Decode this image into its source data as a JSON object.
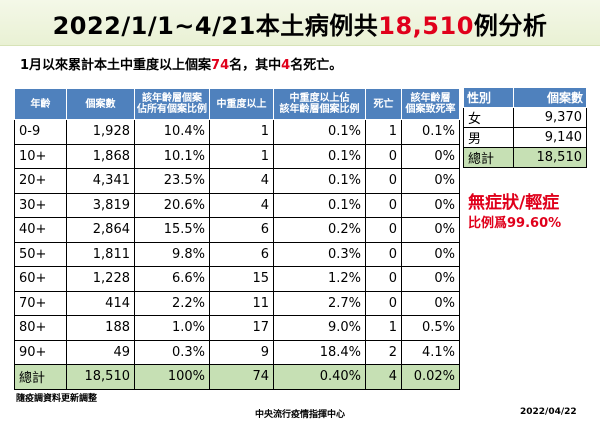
{
  "title": {
    "part1": "2022/1/1~4/21本土病例共",
    "number": "18,510",
    "part2": "例分析"
  },
  "subtitle": {
    "part1": "1月以來累計本土中重度以上個案",
    "count": "74",
    "part2": "名，其中",
    "deaths": "4",
    "part3": "名死亡。"
  },
  "main_table": {
    "headers": [
      "年齡",
      "個案數",
      "該年齡層個案\n佔所有個案比例",
      "中重度以上",
      "中重度以上佔\n該年齡層個案比例",
      "死亡",
      "該年齡層\n個案致死率"
    ],
    "rows": [
      [
        "0-9",
        "1,928",
        "10.4%",
        "1",
        "0.1%",
        "1",
        "0.1%"
      ],
      [
        "10+",
        "1,868",
        "10.1%",
        "1",
        "0.1%",
        "0",
        "0%"
      ],
      [
        "20+",
        "4,341",
        "23.5%",
        "4",
        "0.1%",
        "0",
        "0%"
      ],
      [
        "30+",
        "3,819",
        "20.6%",
        "4",
        "0.1%",
        "0",
        "0%"
      ],
      [
        "40+",
        "2,864",
        "15.5%",
        "6",
        "0.2%",
        "0",
        "0%"
      ],
      [
        "50+",
        "1,811",
        "9.8%",
        "6",
        "0.3%",
        "0",
        "0%"
      ],
      [
        "60+",
        "1,228",
        "6.6%",
        "15",
        "1.2%",
        "0",
        "0%"
      ],
      [
        "70+",
        "414",
        "2.2%",
        "11",
        "2.7%",
        "0",
        "0%"
      ],
      [
        "80+",
        "188",
        "1.0%",
        "17",
        "9.0%",
        "1",
        "0.5%"
      ],
      [
        "90+",
        "49",
        "0.3%",
        "9",
        "18.4%",
        "2",
        "4.1%"
      ]
    ],
    "total": [
      "總計",
      "18,510",
      "100%",
      "74",
      "0.40%",
      "4",
      "0.02%"
    ]
  },
  "gender_table": {
    "headers": [
      "性別",
      "個案數"
    ],
    "rows": [
      [
        "女",
        "9,370"
      ],
      [
        "男",
        "9,140"
      ]
    ],
    "total": [
      "總計",
      "18,510"
    ]
  },
  "note": {
    "big": "無症狀/輕症",
    "small": "比例爲99.60%"
  },
  "footer": {
    "left": "隨疫調資料更新調整",
    "center": "中央流行疫情指揮中心",
    "date": "2022/04/22"
  },
  "colors": {
    "header_blue": "#4f81bd",
    "total_green": "#c6e0b4",
    "accent_red": "#e0001b"
  }
}
